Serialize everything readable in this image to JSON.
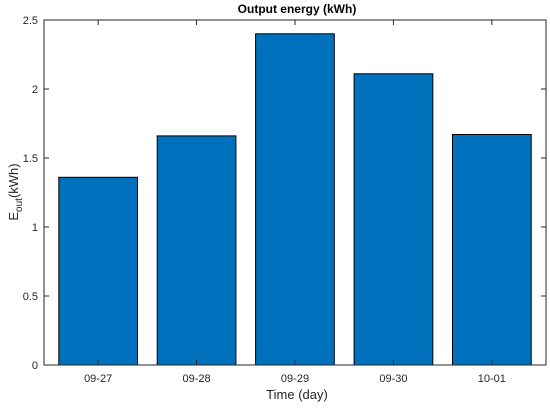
{
  "chart_data": {
    "type": "bar",
    "title": "Output energy (kWh)",
    "xlabel": "Time (day)",
    "ylabel": {
      "main": "E",
      "subscript": "out",
      "suffix": "(kWh)"
    },
    "categories": [
      "09-27",
      "09-28",
      "09-29",
      "09-30",
      "10-01"
    ],
    "values": [
      1.36,
      1.66,
      2.4,
      2.11,
      1.67
    ],
    "ylim": [
      0,
      2.5
    ],
    "yticks": [
      0,
      0.5,
      1,
      1.5,
      2,
      2.5
    ],
    "ytick_labels": [
      "0",
      "0.5",
      "1",
      "1.5",
      "2",
      "2.5"
    ],
    "grid": false,
    "legend": "none",
    "colors": {
      "bar_fill": "#0072BD",
      "bar_edge": "#000000",
      "axis": "#262626"
    }
  }
}
